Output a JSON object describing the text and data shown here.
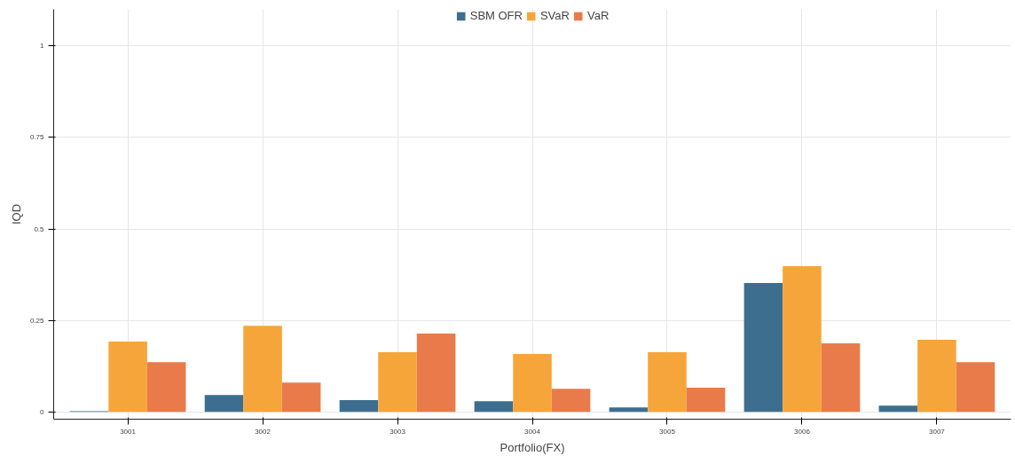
{
  "chart_data": {
    "type": "bar",
    "xlabel": "Portfolio(FX)",
    "ylabel": "IQD",
    "categories": [
      "3001",
      "3002",
      "3003",
      "3004",
      "3005",
      "3006",
      "3007"
    ],
    "series": [
      {
        "name": "SBM OFR",
        "color": "#3d6e8f",
        "values": [
          0.002,
          0.046,
          0.032,
          0.029,
          0.012,
          0.352,
          0.017
        ]
      },
      {
        "name": "SVaR",
        "color": "#f6a53a",
        "values": [
          0.192,
          0.235,
          0.163,
          0.158,
          0.163,
          0.398,
          0.197
        ]
      },
      {
        "name": "VaR",
        "color": "#e97b4a",
        "values": [
          0.136,
          0.08,
          0.214,
          0.063,
          0.066,
          0.187,
          0.136
        ]
      }
    ],
    "ylim": [
      -0.02,
      1.1
    ],
    "yticks": [
      0,
      0.25,
      0.5,
      0.75,
      1
    ],
    "grid": true,
    "legend": "top"
  }
}
